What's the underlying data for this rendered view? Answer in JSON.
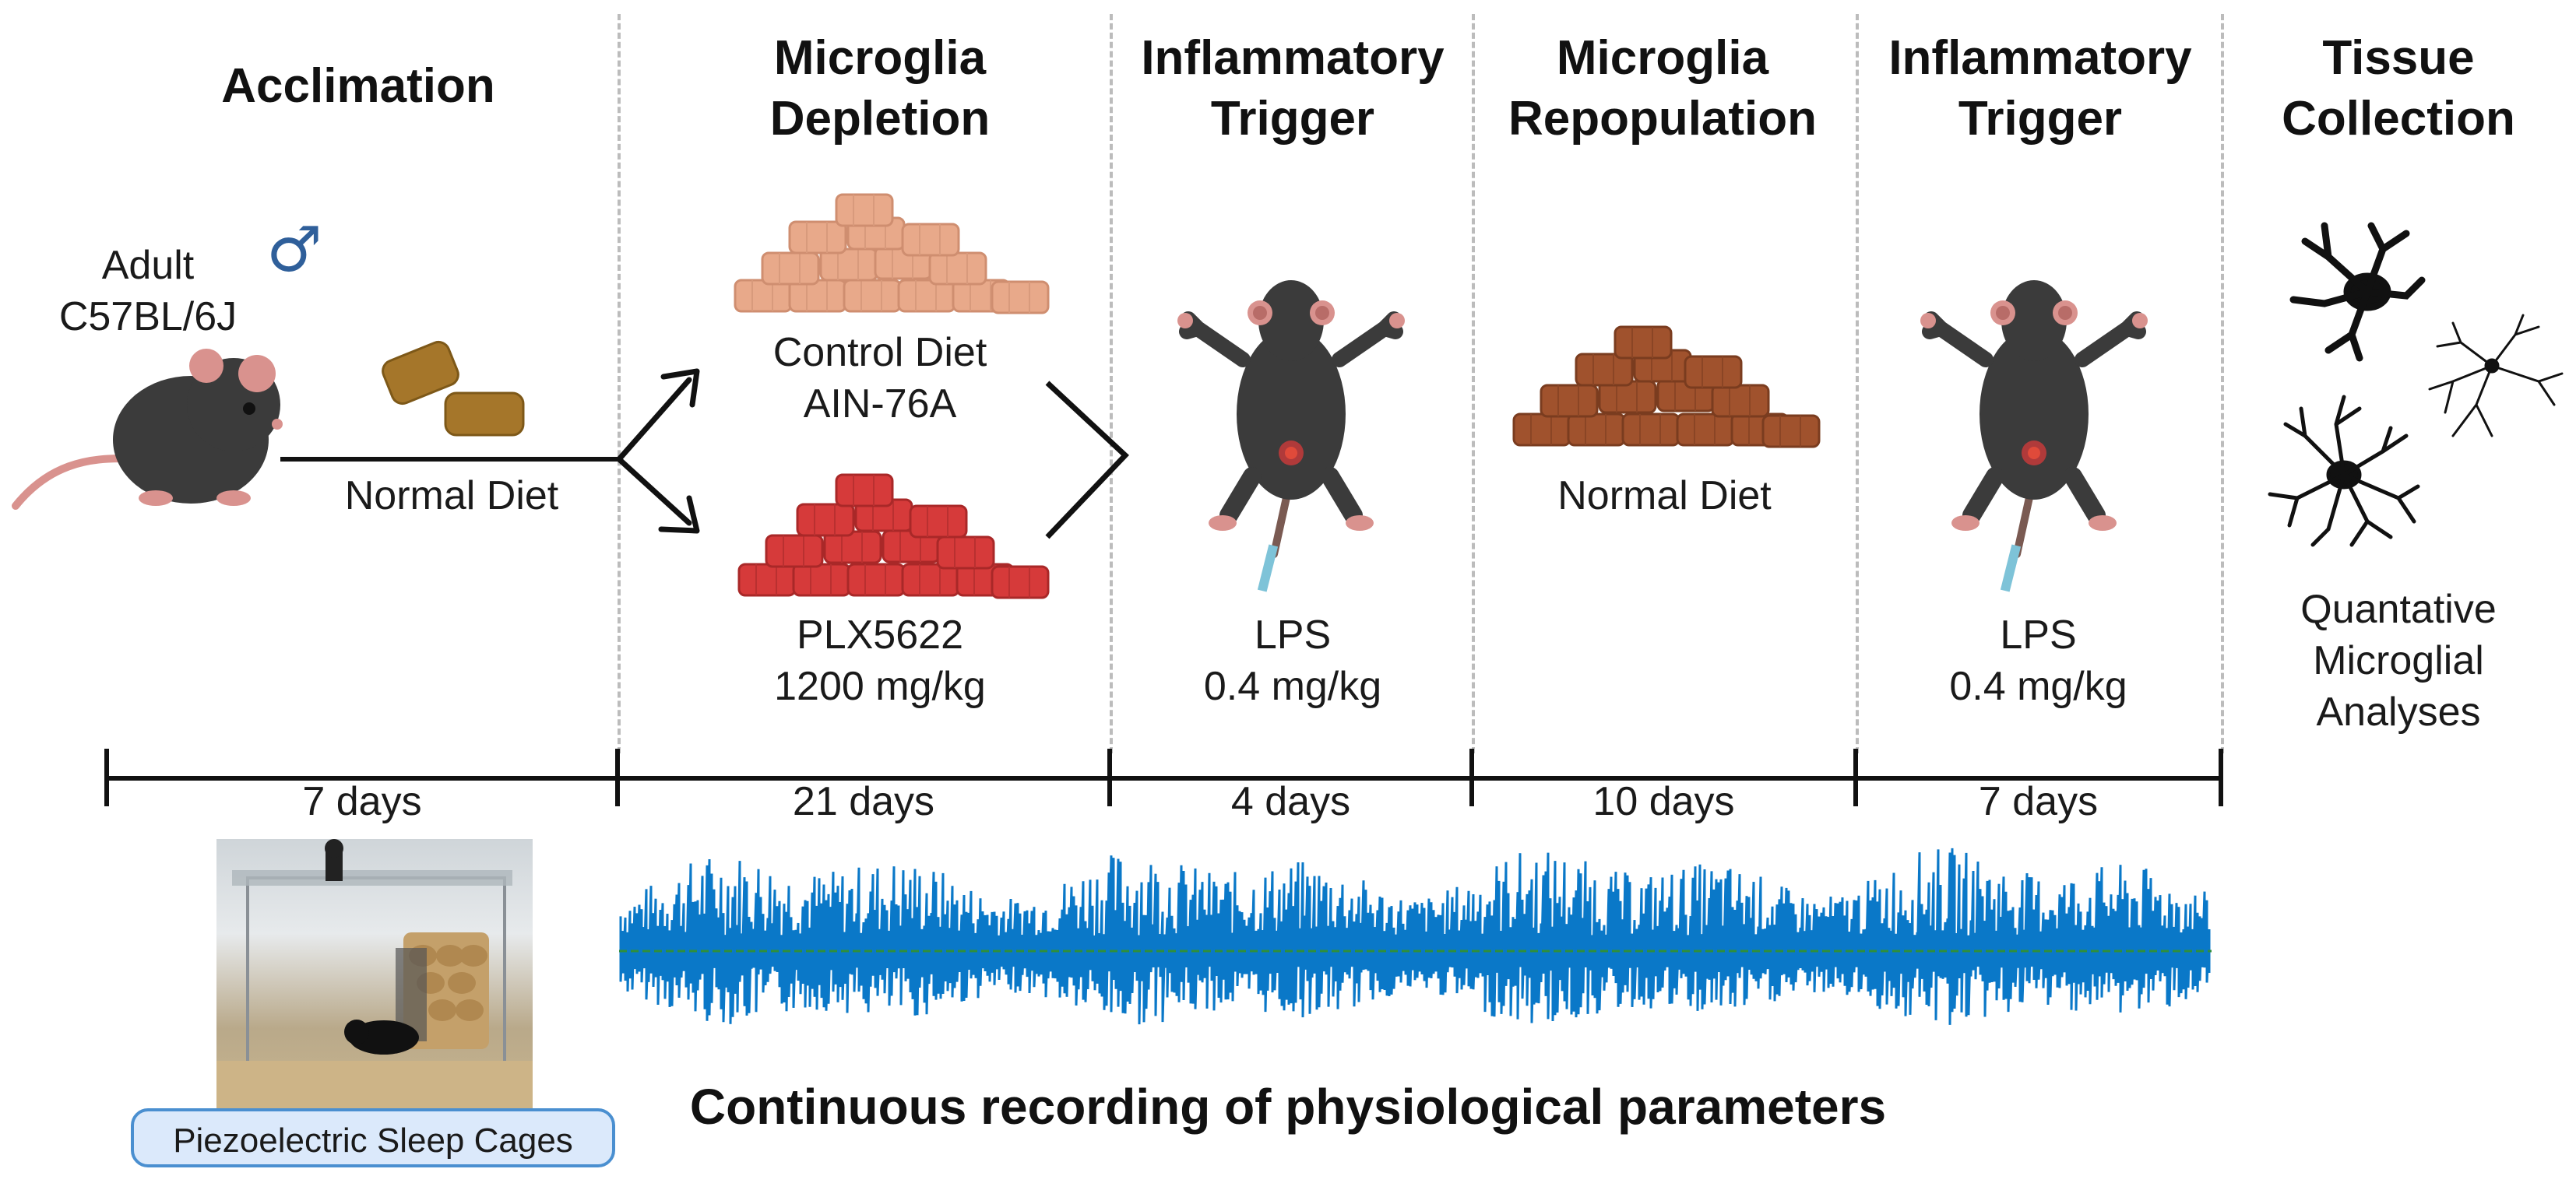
{
  "phases": [
    {
      "id": "acclimation",
      "title_line1": "Acclimation",
      "title_line2": "",
      "duration": "7  days"
    },
    {
      "id": "depletion",
      "title_line1": "Microglia",
      "title_line2": "Depletion",
      "duration": "21  days"
    },
    {
      "id": "trigger1",
      "title_line1": "Inflammatory",
      "title_line2": "Trigger",
      "duration": "4  days"
    },
    {
      "id": "repopulation",
      "title_line1": "Microglia",
      "title_line2": "Repopulation",
      "duration": "10  days"
    },
    {
      "id": "trigger2",
      "title_line1": "Inflammatory",
      "title_line2": "Trigger",
      "duration": "7  days"
    },
    {
      "id": "collection",
      "title_line1": "Tissue",
      "title_line2": "Collection",
      "duration": ""
    }
  ],
  "acclimation": {
    "mouse_line1": "Adult",
    "mouse_line2": "C57BL/6J",
    "sex_symbol": "♂",
    "diet_label": "Normal Diet"
  },
  "depletion": {
    "control_line1": "Control Diet",
    "control_line2": "AIN-76A",
    "plx_line1": "PLX5622",
    "plx_line2": "1200 mg/kg"
  },
  "trigger1": {
    "agent": "LPS",
    "dose": "0.4 mg/kg"
  },
  "repopulation": {
    "diet_label": "Normal Diet"
  },
  "trigger2": {
    "agent": "LPS",
    "dose": "0.4 mg/kg"
  },
  "collection": {
    "line1": "Quantative",
    "line2": "Microglial",
    "line3": "Analyses"
  },
  "cage_label": "Piezoelectric Sleep Cages",
  "recording_caption": "Continuous recording of physiological parameters",
  "colors": {
    "control_diet": "#e8a98a",
    "plx_diet": "#d63a3a",
    "normal_diet_pellet": "#a5762a",
    "repop_diet": "#a0522d",
    "signal": "#0a78c8",
    "threshold": "#2f8f3a",
    "male_symbol": "#2f5f9a",
    "separator": "#bcbcbc"
  }
}
